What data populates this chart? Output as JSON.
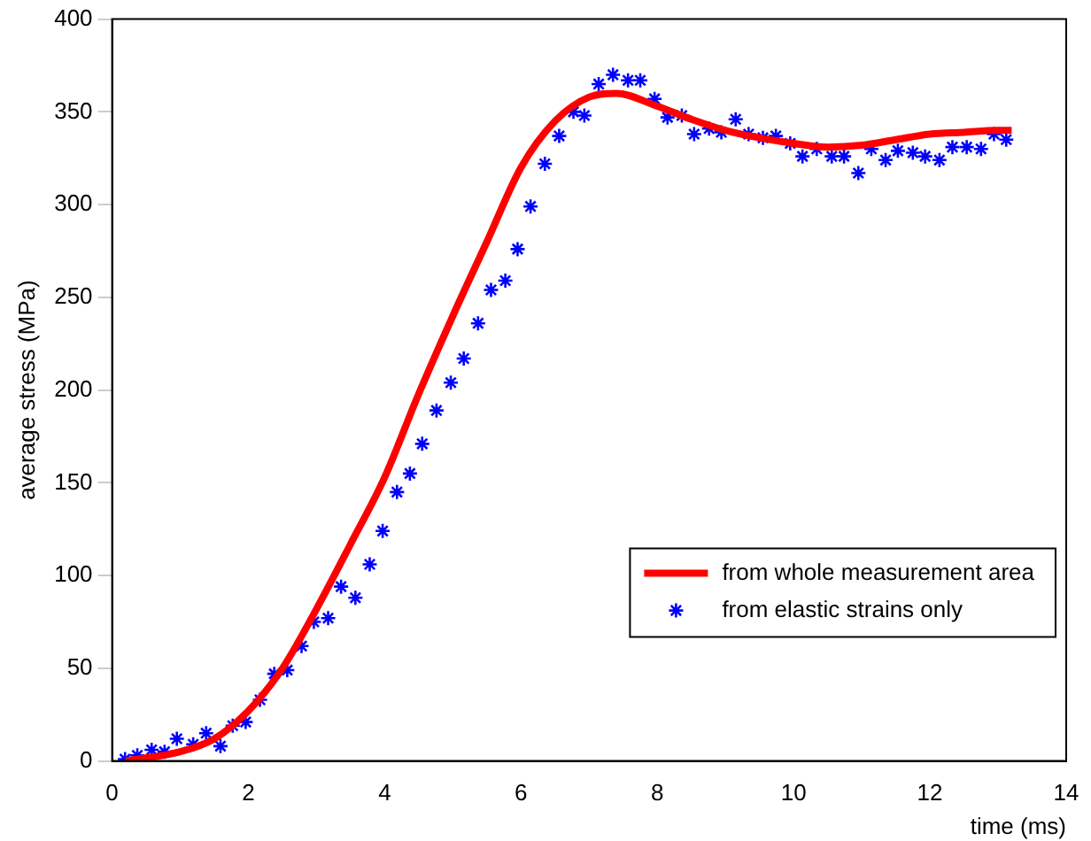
{
  "chart_data": {
    "type": "line",
    "xlabel": "time (ms)",
    "ylabel": "average stress (MPa)",
    "xlim": [
      0,
      14
    ],
    "xticks": [
      0,
      2,
      4,
      6,
      8,
      10,
      12,
      14
    ],
    "ylim": [
      0,
      400
    ],
    "yticks": [
      0,
      50,
      100,
      150,
      200,
      250,
      300,
      350,
      400
    ],
    "grid": false,
    "legend": "bottom right",
    "series": [
      {
        "name": "from whole measurement area",
        "color": "#ff0000",
        "marker": "none",
        "line_style": "solid",
        "x": [
          0.2,
          1,
          1.5,
          2,
          2.5,
          3,
          3.5,
          4,
          4.5,
          5,
          5.5,
          6,
          6.5,
          7,
          7.4,
          8,
          8.5,
          9,
          9.5,
          10,
          10.5,
          11,
          11.5,
          12,
          12.5,
          13,
          13.2
        ],
        "values": [
          0,
          5,
          12,
          27,
          50,
          82,
          117,
          153,
          198,
          240,
          280,
          320,
          345,
          358,
          360,
          353,
          346,
          340,
          336,
          333,
          331,
          332,
          335,
          338,
          339,
          340,
          340
        ]
      },
      {
        "name": "from elastic strains only",
        "type": "scatter",
        "color": "#0000ff",
        "marker": "cross",
        "x": [
          0.19,
          0.37,
          0.58,
          0.77,
          0.95,
          1.19,
          1.38,
          1.59,
          1.77,
          1.96,
          2.17,
          2.38,
          2.57,
          2.78,
          2.96,
          3.17,
          3.36,
          3.57,
          3.78,
          3.97,
          4.18,
          4.37,
          4.55,
          4.76,
          4.97,
          5.16,
          5.37,
          5.56,
          5.77,
          5.95,
          6.14,
          6.35,
          6.56,
          6.77,
          6.93,
          7.14,
          7.35,
          7.57,
          7.75,
          7.96,
          8.15,
          8.36,
          8.54,
          8.76,
          8.94,
          9.15,
          9.34,
          9.55,
          9.74,
          9.95,
          10.13,
          10.34,
          10.56,
          10.74,
          10.95,
          11.14,
          11.35,
          11.53,
          11.75,
          11.93,
          12.14,
          12.33,
          12.54,
          12.75,
          12.94,
          13.12
        ],
        "values": [
          1,
          3,
          6,
          5,
          12,
          9,
          15,
          8,
          19,
          21,
          33,
          47,
          49,
          62,
          75,
          77,
          94,
          88,
          106,
          124,
          145,
          155,
          171,
          189,
          204,
          217,
          236,
          254,
          259,
          276,
          299,
          322,
          337,
          350,
          348,
          365,
          370,
          367,
          367,
          357,
          347,
          348,
          338,
          341,
          339,
          346,
          338,
          336,
          337,
          333,
          326,
          330,
          326,
          326,
          317,
          330,
          324,
          329,
          328,
          326,
          324,
          331,
          331,
          330,
          338,
          335
        ]
      }
    ]
  }
}
